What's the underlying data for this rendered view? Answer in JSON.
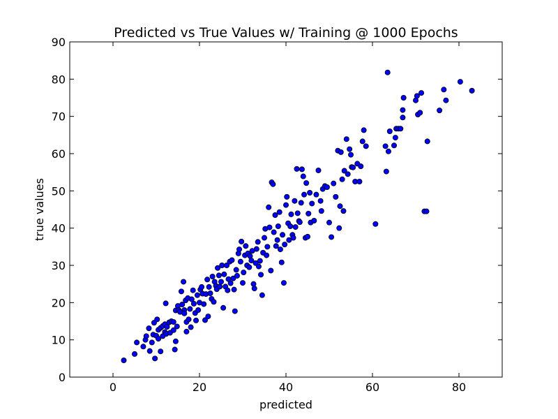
{
  "chart_data": {
    "type": "scatter",
    "title": "Predicted vs True Values w/ Training @ 1000 Epochs",
    "xlabel": "predicted",
    "ylabel": "true values",
    "xlim": [
      -10,
      90
    ],
    "ylim": [
      0,
      90
    ],
    "xticks": [
      0,
      20,
      40,
      60,
      80
    ],
    "yticks": [
      0,
      10,
      20,
      30,
      40,
      50,
      60,
      70,
      80,
      90
    ],
    "grid": false,
    "legend": "none",
    "marker_color": "#0000ff",
    "marker_edge_color": "#000000",
    "series": [
      {
        "points": [
          [
            2.5,
            4.5
          ],
          [
            5,
            6.2
          ],
          [
            5.5,
            9.3
          ],
          [
            7,
            8.2
          ],
          [
            7.5,
            10
          ],
          [
            7.7,
            11
          ],
          [
            8.3,
            13.1
          ],
          [
            8.5,
            7
          ],
          [
            9,
            9.3
          ],
          [
            9.3,
            11.4
          ],
          [
            9.5,
            14.6
          ],
          [
            9.7,
            5
          ],
          [
            10,
            11.1
          ],
          [
            10.2,
            15.5
          ],
          [
            10.5,
            12.7
          ],
          [
            10.5,
            10.3
          ],
          [
            11,
            6.9
          ],
          [
            11,
            13.2
          ],
          [
            11.5,
            11
          ],
          [
            11.5,
            13.7
          ],
          [
            12,
            12.1
          ],
          [
            12,
            14.2
          ],
          [
            12.2,
            19.8
          ],
          [
            12.3,
            11.6
          ],
          [
            12.5,
            13.5
          ],
          [
            13,
            14.7
          ],
          [
            13.2,
            11.9
          ],
          [
            13.5,
            15
          ],
          [
            14,
            12.6
          ],
          [
            14,
            14.8
          ],
          [
            14.3,
            7.4
          ],
          [
            14.5,
            9.6
          ],
          [
            14.5,
            17.9
          ],
          [
            14.8,
            13.6
          ],
          [
            15,
            19.1
          ],
          [
            15.2,
            18
          ],
          [
            15.5,
            17.5
          ],
          [
            15.8,
            23
          ],
          [
            16,
            19.5
          ],
          [
            16.3,
            25.6
          ],
          [
            16.5,
            18
          ],
          [
            16.5,
            17.1
          ],
          [
            16.8,
            20.6
          ],
          [
            17,
            14.8
          ],
          [
            17,
            12.2
          ],
          [
            17.3,
            21.2
          ],
          [
            17.5,
            15.5
          ],
          [
            17.8,
            18.3
          ],
          [
            18,
            13.4
          ],
          [
            18.2,
            20.9
          ],
          [
            18.5,
            23.3
          ],
          [
            18.7,
            19.7
          ],
          [
            19,
            17.2
          ],
          [
            19.2,
            15.2
          ],
          [
            19.5,
            22
          ],
          [
            19.7,
            18
          ],
          [
            20,
            20
          ],
          [
            20.2,
            23.5
          ],
          [
            20.5,
            24.2
          ],
          [
            20.7,
            22.4
          ],
          [
            21,
            19.6
          ],
          [
            21.3,
            15.3
          ],
          [
            21.5,
            22.3
          ],
          [
            21.8,
            26.2
          ],
          [
            22,
            16.3
          ],
          [
            22.2,
            24.2
          ],
          [
            22.5,
            22.5
          ],
          [
            22.8,
            21
          ],
          [
            23,
            27
          ],
          [
            23.3,
            20.2
          ],
          [
            23.5,
            25.6
          ],
          [
            23.8,
            24.5
          ],
          [
            24,
            23.6
          ],
          [
            24.2,
            29.3
          ],
          [
            24.5,
            27.3
          ],
          [
            24.7,
            24.3
          ],
          [
            25,
            25.6
          ],
          [
            25.2,
            30
          ],
          [
            25.5,
            18.6
          ],
          [
            25.7,
            27.6
          ],
          [
            26,
            24.3
          ],
          [
            26.3,
            30
          ],
          [
            26.5,
            23.3
          ],
          [
            26.7,
            26.3
          ],
          [
            27,
            31
          ],
          [
            27.2,
            25.2
          ],
          [
            27.5,
            31.4
          ],
          [
            27.8,
            26.5
          ],
          [
            28,
            23.5
          ],
          [
            28.2,
            17.7
          ],
          [
            28.5,
            28.8
          ],
          [
            28.7,
            27.2
          ],
          [
            29,
            33.2
          ],
          [
            29.2,
            34.3
          ],
          [
            29.5,
            31
          ],
          [
            29.7,
            36.4
          ],
          [
            30,
            25.3
          ],
          [
            30.2,
            28.1
          ],
          [
            30.5,
            32.7
          ],
          [
            30.7,
            35.2
          ],
          [
            31,
            30
          ],
          [
            31.2,
            33.2
          ],
          [
            31.5,
            29.5
          ],
          [
            31.7,
            32.5
          ],
          [
            32,
            31.3
          ],
          [
            32.2,
            33.9
          ],
          [
            32.5,
            25
          ],
          [
            32.7,
            23.8
          ],
          [
            33,
            30.6
          ],
          [
            33.2,
            34.4
          ],
          [
            33.5,
            36.3
          ],
          [
            33.7,
            29.7
          ],
          [
            34,
            31.2
          ],
          [
            34.2,
            27.5
          ],
          [
            34.5,
            22
          ],
          [
            34.7,
            33.4
          ],
          [
            35,
            37.4
          ],
          [
            35.2,
            39.8
          ],
          [
            35.5,
            32.7
          ],
          [
            35.7,
            35
          ],
          [
            36,
            45.6
          ],
          [
            36.2,
            40.2
          ],
          [
            36.5,
            28.6
          ],
          [
            36.7,
            52.3
          ],
          [
            37,
            51.8
          ],
          [
            37.2,
            38.9
          ],
          [
            37.5,
            43.5
          ],
          [
            37.7,
            35.2
          ],
          [
            38,
            36.8
          ],
          [
            38.2,
            40.5
          ],
          [
            38.5,
            44.3
          ],
          [
            38.7,
            34.3
          ],
          [
            39,
            30.8
          ],
          [
            39.2,
            38.2
          ],
          [
            39.5,
            25.3
          ],
          [
            39.7,
            35.6
          ],
          [
            40,
            46.2
          ],
          [
            40.2,
            48.4
          ],
          [
            40.5,
            41.3
          ],
          [
            40.7,
            36.8
          ],
          [
            41,
            40.5
          ],
          [
            41.2,
            43.7
          ],
          [
            41.5,
            38.2
          ],
          [
            41.7,
            37.4
          ],
          [
            42,
            47.3
          ],
          [
            42.2,
            40.3
          ],
          [
            42.5,
            55.9
          ],
          [
            42.7,
            44
          ],
          [
            43,
            41.9
          ],
          [
            43.2,
            41.6
          ],
          [
            43.5,
            46.8
          ],
          [
            43.7,
            55.8
          ],
          [
            44,
            53.9
          ],
          [
            44.2,
            49
          ],
          [
            44.5,
            37.4
          ],
          [
            44.7,
            52.1
          ],
          [
            45,
            37.7
          ],
          [
            45.2,
            43.9
          ],
          [
            45.5,
            49.5
          ],
          [
            45.7,
            41.5
          ],
          [
            46,
            46.6
          ],
          [
            46.5,
            42
          ],
          [
            47,
            49
          ],
          [
            47.5,
            55.5
          ],
          [
            48,
            47.3
          ],
          [
            48.2,
            44.6
          ],
          [
            48.5,
            50.5
          ],
          [
            49,
            51.3
          ],
          [
            49.5,
            51
          ],
          [
            50,
            41.5
          ],
          [
            50.5,
            37.6
          ],
          [
            51,
            52
          ],
          [
            51.5,
            48.4
          ],
          [
            52,
            60.8
          ],
          [
            52.3,
            40
          ],
          [
            52.5,
            45.9
          ],
          [
            52.7,
            60.4
          ],
          [
            53,
            53.1
          ],
          [
            53.3,
            44.6
          ],
          [
            53.5,
            55.4
          ],
          [
            54,
            63.9
          ],
          [
            54.3,
            54.5
          ],
          [
            54.7,
            61.2
          ],
          [
            55,
            59.7
          ],
          [
            55.2,
            56.4
          ],
          [
            55.5,
            56.3
          ],
          [
            56,
            52.5
          ],
          [
            56.5,
            57.3
          ],
          [
            57,
            52.5
          ],
          [
            57.3,
            56.6
          ],
          [
            57.7,
            63.3
          ],
          [
            58,
            66.3
          ],
          [
            58.5,
            62
          ],
          [
            60.7,
            41.1
          ],
          [
            63,
            62
          ],
          [
            63.2,
            55.2
          ],
          [
            63.5,
            81.8
          ],
          [
            63.7,
            60.6
          ],
          [
            64,
            66
          ],
          [
            65,
            62.2
          ],
          [
            65.3,
            64.3
          ],
          [
            65.5,
            66.7
          ],
          [
            66,
            66.7
          ],
          [
            66.5,
            66.7
          ],
          [
            67,
            71.7
          ],
          [
            67,
            69.7
          ],
          [
            67.2,
            75
          ],
          [
            70,
            74.3
          ],
          [
            70.3,
            75.5
          ],
          [
            70.5,
            70.5
          ],
          [
            71,
            71
          ],
          [
            71.3,
            76.3
          ],
          [
            72,
            44.5
          ],
          [
            72.5,
            44.5
          ],
          [
            72.7,
            63.3
          ],
          [
            75.5,
            71.6
          ],
          [
            76.5,
            77.2
          ],
          [
            77,
            74.3
          ],
          [
            80.3,
            79.3
          ],
          [
            83,
            76.9
          ]
        ]
      }
    ]
  }
}
